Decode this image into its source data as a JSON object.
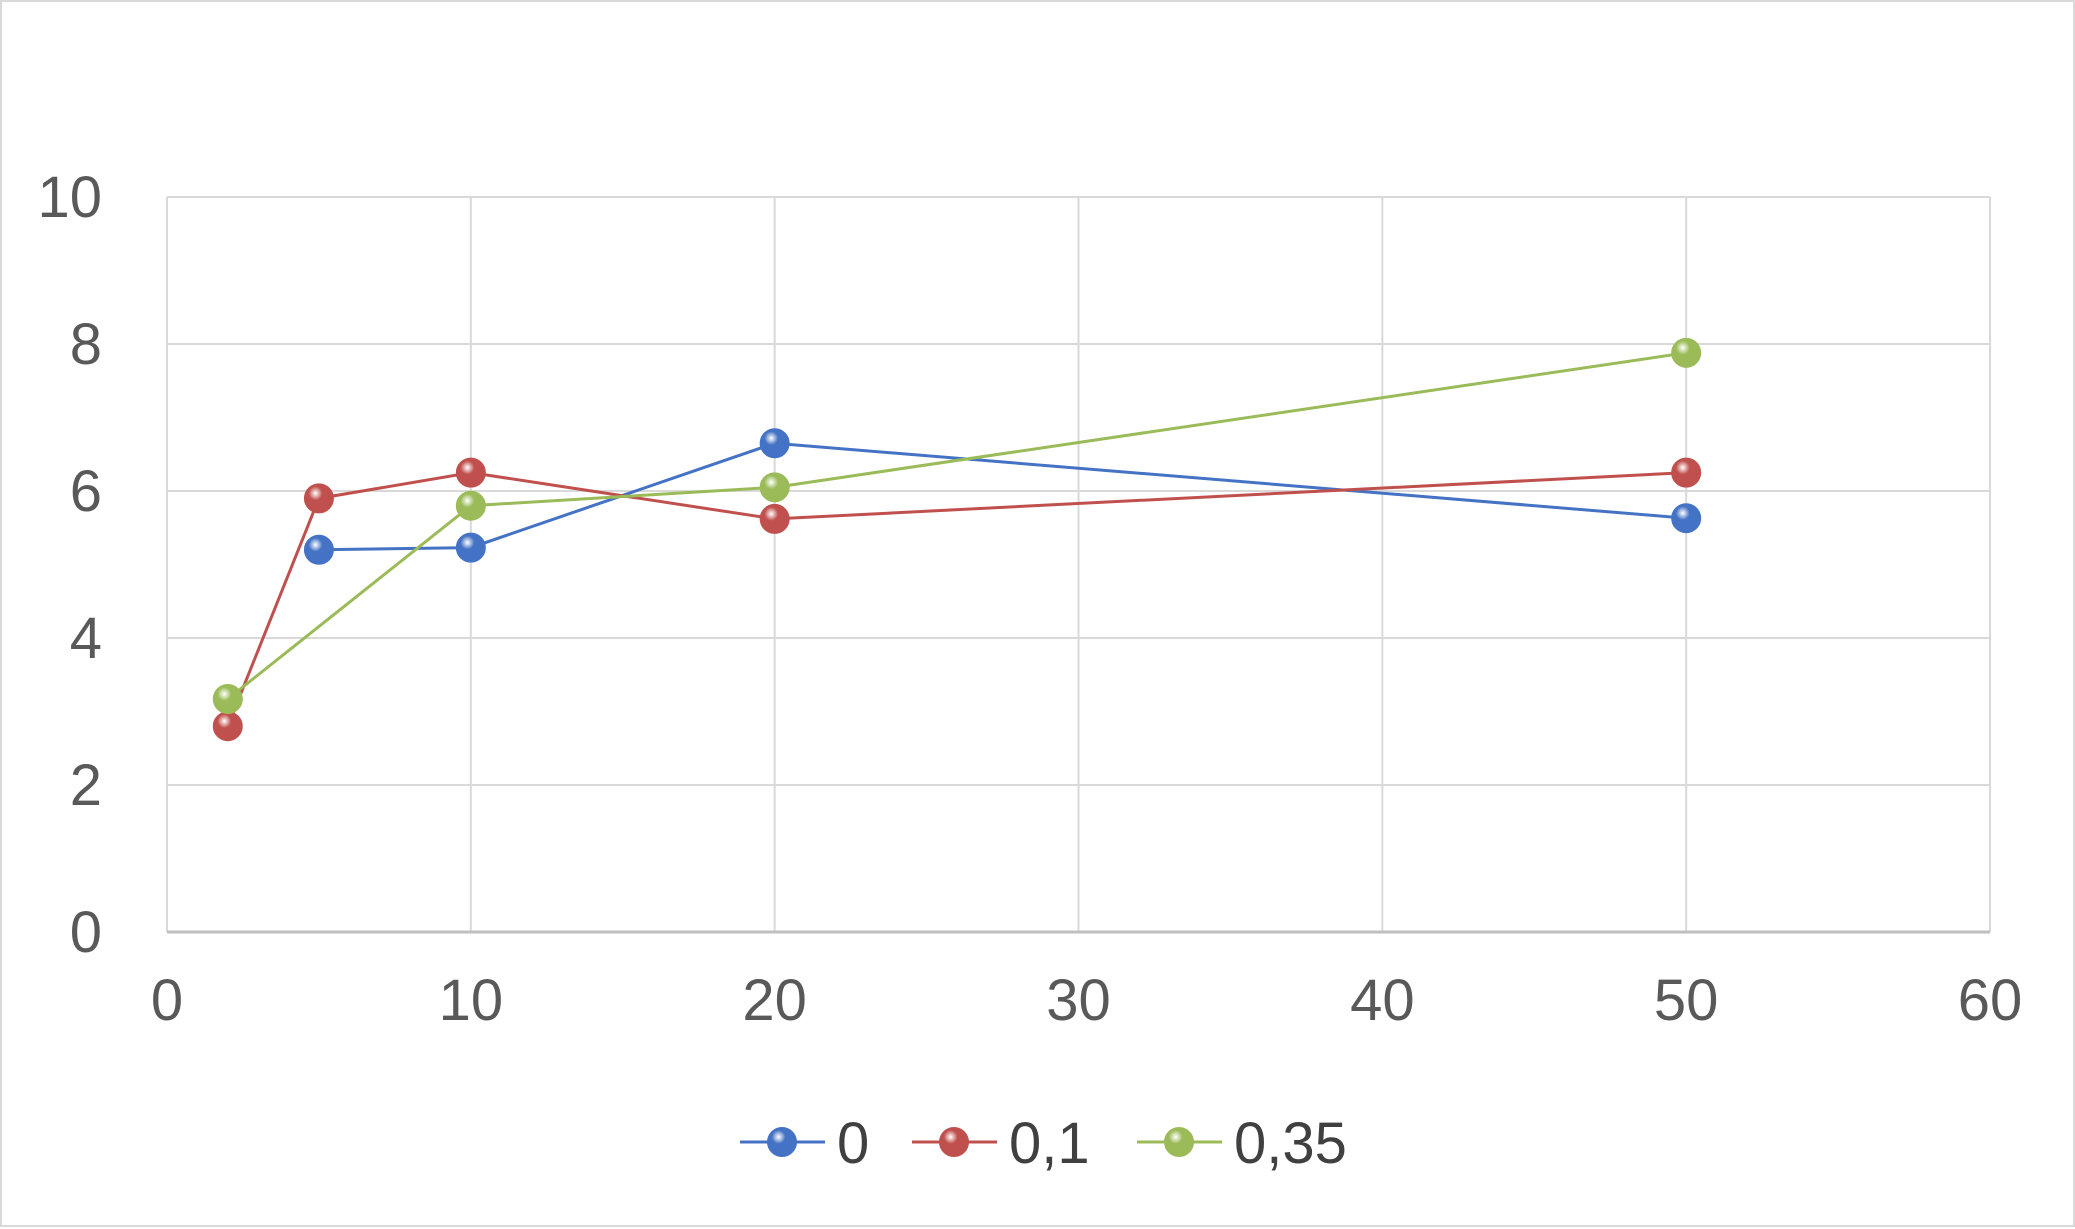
{
  "chart_data": {
    "type": "scatter",
    "title": "",
    "xlabel": "",
    "ylabel": "",
    "xlim": [
      0,
      60
    ],
    "ylim": [
      0,
      10
    ],
    "x_ticks": [
      0,
      10,
      20,
      30,
      40,
      50,
      60
    ],
    "y_ticks": [
      0,
      2,
      4,
      6,
      8,
      10
    ],
    "x_tick_labels": [
      "0",
      "10",
      "20",
      "30",
      "40",
      "50",
      "60"
    ],
    "y_tick_labels": [
      "0",
      "2",
      "4",
      "6",
      "8",
      "10"
    ],
    "grid": true,
    "legend_position": "bottom",
    "series": [
      {
        "name": "0",
        "color": "#4472c4",
        "points": [
          [
            5,
            5.2
          ],
          [
            10,
            5.23
          ],
          [
            20,
            6.65
          ],
          [
            50,
            5.63
          ]
        ]
      },
      {
        "name": "0,1",
        "color": "#c0504d",
        "points": [
          [
            2,
            2.8
          ],
          [
            5,
            5.9
          ],
          [
            10,
            6.25
          ],
          [
            20,
            5.62
          ],
          [
            50,
            6.25
          ]
        ]
      },
      {
        "name": "0,35",
        "color": "#9bbb59",
        "points": [
          [
            2,
            3.17
          ],
          [
            10,
            5.8
          ],
          [
            20,
            6.05
          ],
          [
            50,
            7.88
          ]
        ]
      }
    ]
  }
}
